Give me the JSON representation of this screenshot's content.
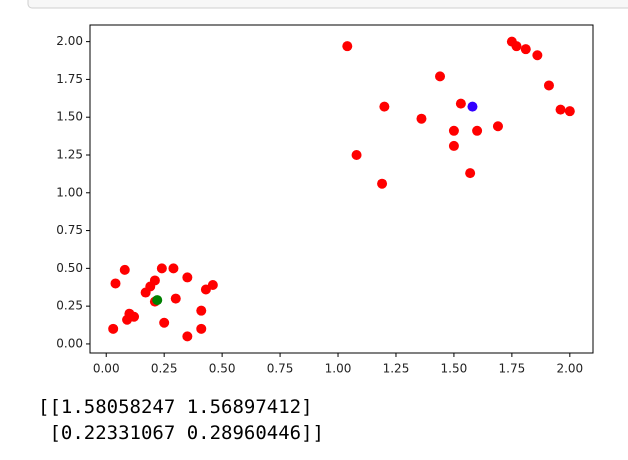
{
  "chart_data": {
    "type": "scatter",
    "series": [
      {
        "color": "#ff0000",
        "x": [
          1.04,
          1.75,
          1.77,
          1.81,
          1.86,
          1.44,
          1.91,
          1.2,
          1.53,
          1.36,
          1.69,
          1.5,
          1.6,
          1.96,
          2.0,
          1.5,
          1.08,
          1.57,
          1.19,
          0.08,
          0.24,
          0.29,
          0.04,
          0.21,
          0.19,
          0.17,
          0.35,
          0.46,
          0.43,
          0.3,
          0.21,
          0.41,
          0.1,
          0.12,
          0.09,
          0.25,
          0.03,
          0.41,
          0.35
        ],
        "values": [
          1.97,
          2.0,
          1.97,
          1.95,
          1.91,
          1.77,
          1.71,
          1.57,
          1.59,
          1.49,
          1.44,
          1.41,
          1.41,
          1.55,
          1.54,
          1.31,
          1.25,
          1.13,
          1.06,
          0.49,
          0.5,
          0.5,
          0.4,
          0.42,
          0.38,
          0.34,
          0.44,
          0.39,
          0.36,
          0.3,
          0.28,
          0.22,
          0.2,
          0.18,
          0.16,
          0.14,
          0.1,
          0.1,
          0.05
        ]
      },
      {
        "color": "#3300ff",
        "x": [
          1.58
        ],
        "values": [
          1.57
        ]
      },
      {
        "color": "#008000",
        "x": [
          0.22
        ],
        "values": [
          0.29
        ]
      }
    ],
    "xlim": [
      -0.07,
      2.1
    ],
    "ylim": [
      -0.06,
      2.11
    ],
    "xticks": [
      {
        "value": 0,
        "label": "0.00"
      },
      {
        "value": 0.25,
        "label": "0.25"
      },
      {
        "value": 0.5,
        "label": "0.50"
      },
      {
        "value": 0.75,
        "label": "0.75"
      },
      {
        "value": 1,
        "label": "1.00"
      },
      {
        "value": 1.25,
        "label": "1.25"
      },
      {
        "value": 1.5,
        "label": "1.50"
      },
      {
        "value": 1.75,
        "label": "1.75"
      },
      {
        "value": 2,
        "label": "2.00"
      }
    ],
    "yticks": [
      {
        "value": 0,
        "label": "0.00"
      },
      {
        "value": 0.25,
        "label": "0.25"
      },
      {
        "value": 0.5,
        "label": "0.50"
      },
      {
        "value": 0.75,
        "label": "0.75"
      },
      {
        "value": 1,
        "label": "1.00"
      },
      {
        "value": 1.25,
        "label": "1.25"
      },
      {
        "value": 1.5,
        "label": "1.50"
      },
      {
        "value": 1.75,
        "label": "1.75"
      },
      {
        "value": 2,
        "label": "2.00"
      }
    ],
    "grid": false
  },
  "output": {
    "lines": [
      "[[1.58058247 1.56897412]",
      " [0.22331067 0.28960446]]"
    ]
  }
}
